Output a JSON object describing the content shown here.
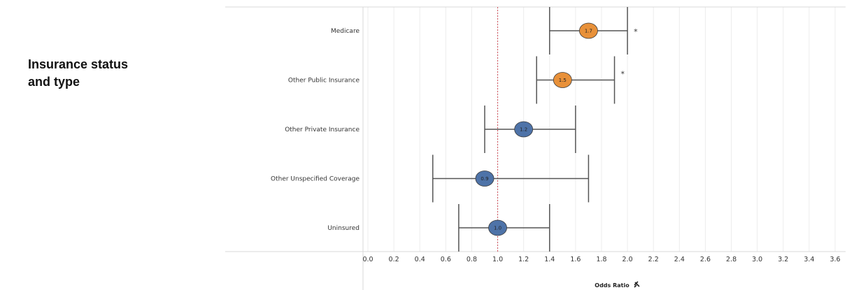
{
  "section": {
    "title_line1": "Insurance status",
    "title_line2": "and type"
  },
  "chart_data": {
    "type": "forest",
    "xlabel": "Odds Ratio",
    "xlim": [
      0.0,
      3.6
    ],
    "xticks": [
      "0.0",
      "0.2",
      "0.4",
      "0.6",
      "0.8",
      "1.0",
      "1.2",
      "1.4",
      "1.6",
      "1.8",
      "2.0",
      "2.2",
      "2.4",
      "2.6",
      "2.8",
      "3.0",
      "3.2",
      "3.4",
      "3.6"
    ],
    "reference_line": 1.0,
    "grid": "vertical",
    "rows": [
      {
        "category": "Medicare",
        "estimate": 1.7,
        "label": "1.7",
        "lower": 1.4,
        "upper": 2.0,
        "significant": true,
        "marker": "*",
        "color": "#E8913A"
      },
      {
        "category": "Other Public Insurance",
        "estimate": 1.5,
        "label": "1.5",
        "lower": 1.3,
        "upper": 1.9,
        "significant": true,
        "marker": "*",
        "color": "#E8913A"
      },
      {
        "category": "Other Private Insurance",
        "estimate": 1.2,
        "label": "1.2",
        "lower": 0.9,
        "upper": 1.6,
        "significant": false,
        "marker": "",
        "color": "#4E73A8"
      },
      {
        "category": "Other Unspecified Coverage",
        "estimate": 0.9,
        "label": "0.9",
        "lower": 0.5,
        "upper": 1.7,
        "significant": false,
        "marker": "",
        "color": "#4E73A8"
      },
      {
        "category": "Uninsured",
        "estimate": 1.0,
        "label": "1.0",
        "lower": 0.7,
        "upper": 1.4,
        "significant": false,
        "marker": "",
        "color": "#4E73A8"
      }
    ],
    "colors": {
      "significant": "#E8913A",
      "not_significant": "#4E73A8",
      "reference_line": "#D0505A",
      "whisker": "#555555"
    }
  },
  "icons": {
    "axis_pin": "pin-icon"
  }
}
